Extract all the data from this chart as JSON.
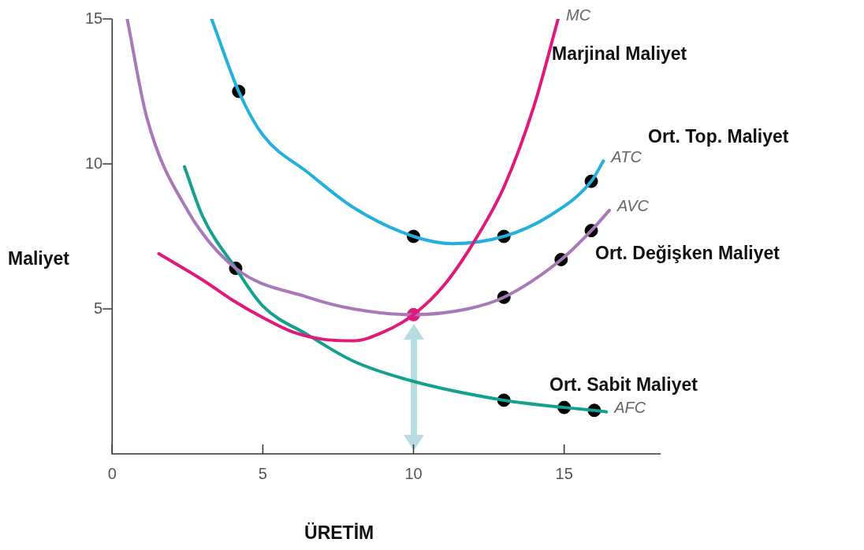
{
  "chart_data": {
    "type": "line",
    "xlabel": "ÜRETİM",
    "ylabel": "Maliyet",
    "xlim": [
      0,
      18.2
    ],
    "ylim": [
      0,
      15
    ],
    "xticks": [
      0,
      5,
      10,
      15
    ],
    "yticks": [
      5,
      10,
      15
    ],
    "grid": false,
    "legend": false,
    "line_style": "solid",
    "series": [
      {
        "name": "MC",
        "color": "#e0197d",
        "x": [
          1.55,
          3,
          4,
          5,
          6,
          7,
          8,
          9,
          10,
          11,
          12,
          13,
          14,
          14.8
        ],
        "values": [
          6.9,
          6.0,
          5.3,
          4.7,
          4.2,
          3.95,
          3.9,
          4.2,
          4.8,
          5.8,
          7.3,
          9.2,
          12,
          15
        ]
      },
      {
        "name": "ATC",
        "color": "#22b0dd",
        "x": [
          3.3,
          4.2,
          5,
          6.5,
          8,
          10,
          11.3,
          13,
          14.5,
          15.9,
          16.3
        ],
        "values": [
          15,
          12.5,
          11,
          9.7,
          8.5,
          7.5,
          7.25,
          7.5,
          8.2,
          9.4,
          10.1
        ]
      },
      {
        "name": "AVC",
        "color": "#a878b8",
        "x": [
          0.5,
          1.15,
          2.5,
          4.1,
          6.5,
          8,
          10,
          11.8,
          13,
          14.9,
          15.9,
          16.5
        ],
        "values": [
          15,
          11.6,
          8.4,
          6.4,
          5.4,
          5.0,
          4.8,
          5.0,
          5.4,
          6.7,
          7.7,
          8.4
        ]
      },
      {
        "name": "AFC",
        "color": "#13a08f",
        "x": [
          2.4,
          3,
          4.1,
          5,
          6.5,
          8,
          10,
          13,
          15,
          16,
          16.4
        ],
        "values": [
          9.9,
          8.2,
          6.4,
          5.1,
          4.1,
          3.2,
          2.5,
          1.85,
          1.6,
          1.5,
          1.45
        ]
      },
      {
        "type": "scatter",
        "color": "#000000",
        "x": [
          4.2,
          10,
          13,
          15.9,
          4.1,
          13,
          14.9,
          15.9,
          13,
          15,
          16
        ],
        "values": [
          12.5,
          7.5,
          7.5,
          9.4,
          6.4,
          5.4,
          6.7,
          7.7,
          1.85,
          1.6,
          1.5
        ]
      },
      {
        "type": "scatter",
        "color": "#e0197d",
        "x": [
          10
        ],
        "values": [
          4.8
        ]
      }
    ],
    "annotations": [
      "Marjinal Maliyet",
      "Ort. Top. Maliyet",
      "Ort. Değişken Maliyet",
      "Ort. Sabit Maliyet"
    ]
  }
}
